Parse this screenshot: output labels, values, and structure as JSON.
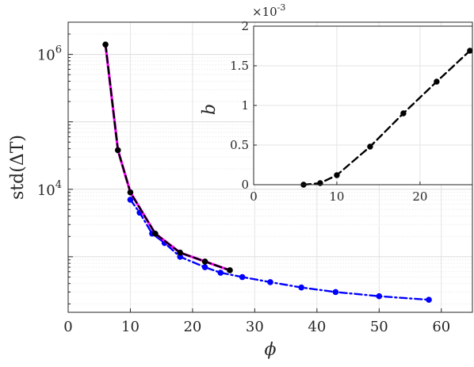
{
  "chart_data": [
    {
      "type": "line",
      "scale": {
        "x": "linear",
        "y": "log"
      },
      "xlabel": "ϕ",
      "ylabel": "std(ΔT)",
      "xlim": [
        0,
        65
      ],
      "ylim": [
        150,
        3000000
      ],
      "xticks": [
        0,
        10,
        20,
        30,
        40,
        50,
        60
      ],
      "ytick_labels": [
        {
          "value": 1000000,
          "base": "10",
          "exp": "6"
        },
        {
          "value": 10000,
          "base": "10",
          "exp": "4"
        }
      ],
      "grid": true,
      "colors": {
        "magenta": "#ff00ff",
        "black": "#000000",
        "blue": "#0000ff"
      },
      "series": [
        {
          "style": "magenta-solid",
          "x": [
            6,
            8,
            10,
            14,
            18,
            22,
            26
          ],
          "y": [
            1400000,
            38000,
            9000,
            2200,
            1150,
            850,
            630
          ]
        },
        {
          "style": "black-dashed-markers",
          "x": [
            6,
            8,
            10,
            14,
            18,
            22,
            26
          ],
          "y": [
            1400000,
            38000,
            9000,
            2200,
            1150,
            850,
            630
          ]
        },
        {
          "style": "blue-dashdot-markers",
          "x": [
            10,
            11.5,
            13.5,
            15.5,
            18,
            22,
            24.5,
            28,
            32.5,
            37.5,
            43,
            50,
            58
          ],
          "y": [
            7000,
            4500,
            2200,
            1600,
            1000,
            700,
            580,
            500,
            420,
            350,
            300,
            260,
            230
          ]
        }
      ]
    },
    {
      "type": "line",
      "inset": true,
      "ylabel": "b",
      "y_multiplier": {
        "base": "×10",
        "exp": "-3"
      },
      "xlim": [
        0,
        26.3
      ],
      "ylim": [
        0,
        2
      ],
      "xticks": [
        0,
        10,
        20
      ],
      "yticks": [
        0,
        0.5,
        1,
        1.5,
        2
      ],
      "grid": true,
      "series": [
        {
          "style": "black-dashed-markers",
          "x": [
            6,
            8,
            10,
            14,
            18,
            22,
            26
          ],
          "y": [
            0,
            0.02,
            0.12,
            0.48,
            0.9,
            1.3,
            1.69
          ]
        }
      ]
    }
  ]
}
